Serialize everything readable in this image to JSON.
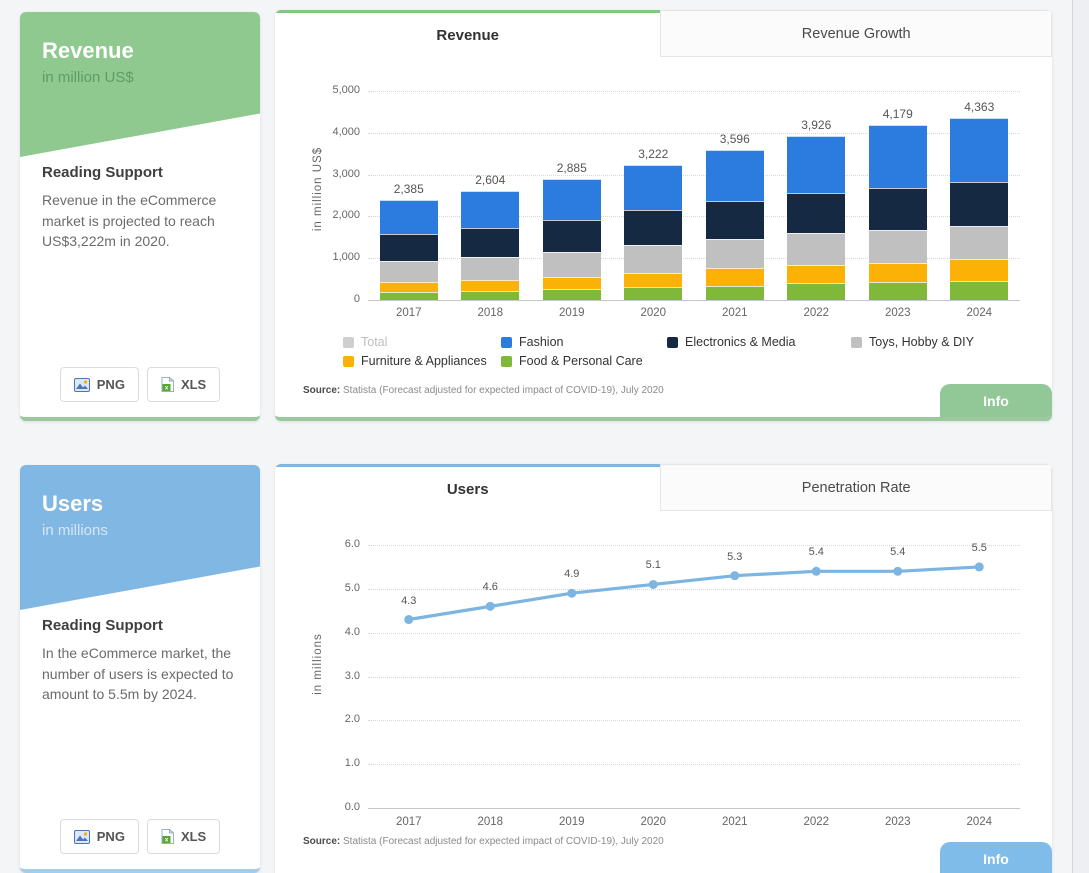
{
  "revenue_panel": {
    "side_card": {
      "title": "Revenue",
      "subtitle": "in million US$",
      "reading_support_heading": "Reading Support",
      "reading_support_body": "Revenue in the eCommerce market is projected to reach US$3,222m in 2020.",
      "png_button": "PNG",
      "xls_button": "XLS"
    },
    "tabs": [
      {
        "label": "Revenue"
      },
      {
        "label": "Revenue Growth"
      }
    ],
    "source_label": "Source:",
    "source_text": " Statista (Forecast adjusted for expected impact of COVID-19), July 2020",
    "info_button": "Info"
  },
  "users_panel": {
    "side_card": {
      "title": "Users",
      "subtitle": "in millions",
      "reading_support_heading": "Reading Support",
      "reading_support_body": "In the eCommerce market, the number of users is expected to amount to 5.5m by 2024.",
      "png_button": "PNG",
      "xls_button": "XLS"
    },
    "tabs": [
      {
        "label": "Users"
      },
      {
        "label": "Penetration Rate"
      }
    ],
    "source_label": "Source:",
    "source_text": " Statista (Forecast adjusted for expected impact of COVID-19), July 2020",
    "info_button": "Info"
  },
  "chart_data": [
    {
      "type": "bar",
      "stacked": true,
      "title": "Revenue",
      "ylabel": "in million US$",
      "ylim": [
        0,
        5000
      ],
      "grid": "horizontal-dotted",
      "legend_position": "bottom",
      "categories": [
        "2017",
        "2018",
        "2019",
        "2020",
        "2021",
        "2022",
        "2023",
        "2024"
      ],
      "series": [
        {
          "name": "Fashion",
          "color": "#2b7cde",
          "values": [
            800,
            879,
            980,
            1072,
            1226,
            1371,
            1489,
            1543
          ]
        },
        {
          "name": "Electronics & Media",
          "color": "#152a42",
          "values": [
            655,
            705,
            765,
            840,
            905,
            950,
            1010,
            1060
          ]
        },
        {
          "name": "Toys, Hobby & DIY",
          "color": "#c0c0c0",
          "values": [
            500,
            540,
            590,
            670,
            690,
            760,
            785,
            770
          ]
        },
        {
          "name": "Furniture & Appliances",
          "color": "#fcb106",
          "values": [
            230,
            255,
            285,
            330,
            430,
            445,
            475,
            545
          ]
        },
        {
          "name": "Food & Personal Care",
          "color": "#80b83a",
          "values": [
            200,
            225,
            265,
            310,
            345,
            400,
            420,
            445
          ]
        }
      ],
      "stack_bottom_to_top": [
        "Food & Personal Care",
        "Furniture & Appliances",
        "Toys, Hobby & DIY",
        "Electronics & Media",
        "Fashion"
      ],
      "totals": [
        2385,
        2604,
        2885,
        3222,
        3596,
        3926,
        4179,
        4363
      ],
      "total_labels": [
        "2,385",
        "2,604",
        "2,885",
        "3,222",
        "3,596",
        "3,926",
        "4,179",
        "4,363"
      ],
      "yticks": [
        {
          "value": 0,
          "label": "0"
        },
        {
          "value": 1000,
          "label": "1,000"
        },
        {
          "value": 2000,
          "label": "2,000"
        },
        {
          "value": 3000,
          "label": "3,000"
        },
        {
          "value": 4000,
          "label": "4,000"
        },
        {
          "value": 5000,
          "label": "5,000"
        }
      ],
      "legend": [
        {
          "label": "Total",
          "color": "#cfcfcf",
          "disabled": true
        },
        {
          "label": "Fashion",
          "color": "#2b7cde",
          "disabled": false
        },
        {
          "label": "Electronics & Media",
          "color": "#152a42",
          "disabled": false
        },
        {
          "label": "Toys, Hobby & DIY",
          "color": "#c0c0c0",
          "disabled": false
        },
        {
          "label": "Furniture & Appliances",
          "color": "#fcb106",
          "disabled": false
        },
        {
          "label": "Food & Personal Care",
          "color": "#80b83a",
          "disabled": false
        }
      ]
    },
    {
      "type": "line",
      "title": "Users",
      "ylabel": "in millions",
      "ylim": [
        0,
        6
      ],
      "grid": "horizontal-dotted",
      "legend_position": "none",
      "color": "#7cb5e2",
      "x": [
        "2017",
        "2018",
        "2019",
        "2020",
        "2021",
        "2022",
        "2023",
        "2024"
      ],
      "values": [
        4.3,
        4.6,
        4.9,
        5.1,
        5.3,
        5.4,
        5.4,
        5.5
      ],
      "point_labels": [
        "4.3",
        "4.6",
        "4.9",
        "5.1",
        "5.3",
        "5.4",
        "5.4",
        "5.5"
      ],
      "yticks": [
        {
          "value": 0,
          "label": "0.0"
        },
        {
          "value": 1,
          "label": "1.0"
        },
        {
          "value": 2,
          "label": "2.0"
        },
        {
          "value": 3,
          "label": "3.0"
        },
        {
          "value": 4,
          "label": "4.0"
        },
        {
          "value": 5,
          "label": "5.0"
        },
        {
          "value": 6,
          "label": "6.0"
        }
      ]
    }
  ]
}
